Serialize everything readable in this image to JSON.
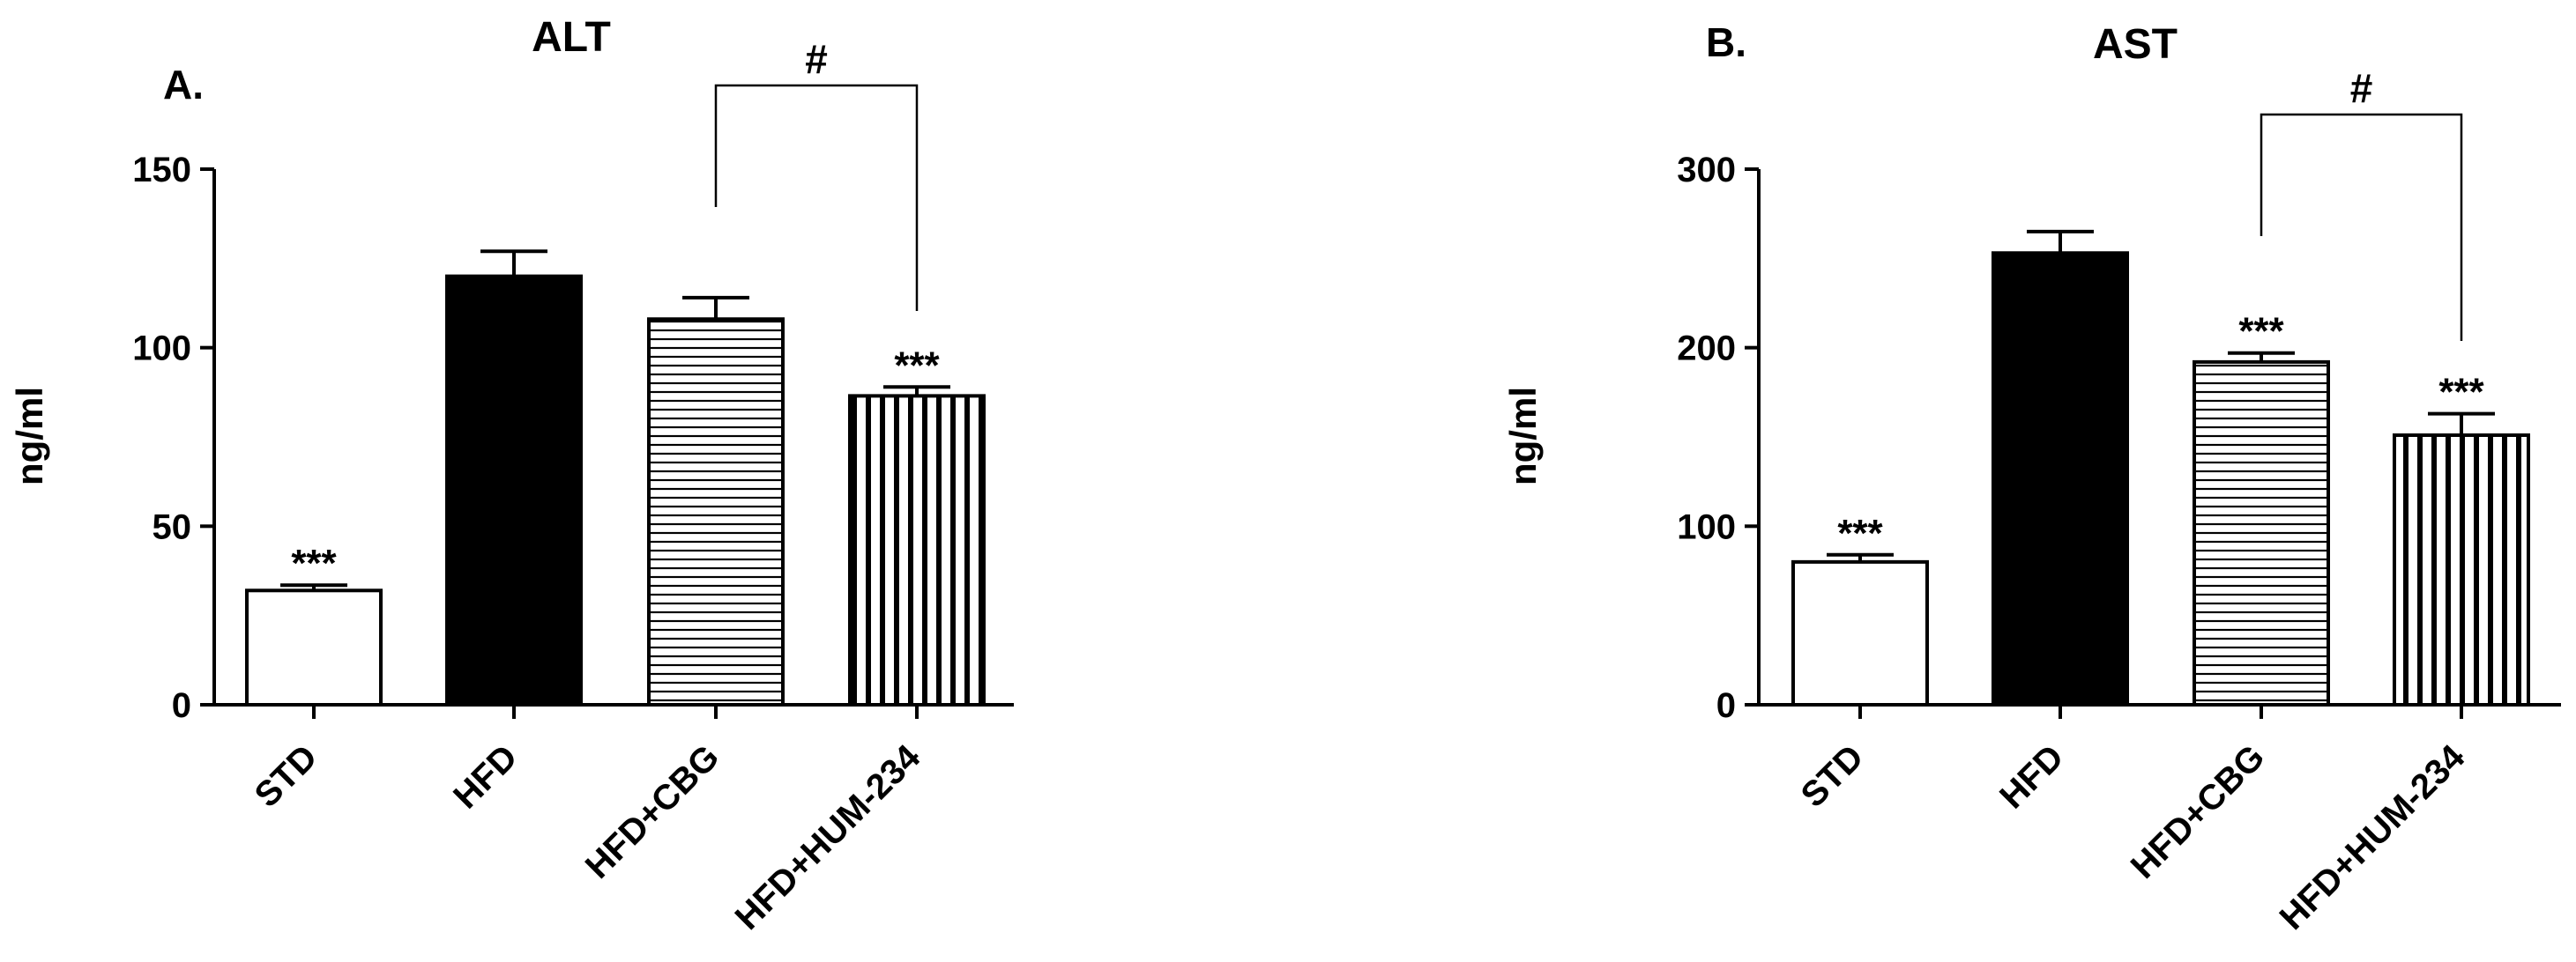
{
  "chart_data": [
    {
      "type": "bar",
      "panel_label": "A.",
      "title": "ALT",
      "ylabel": "ng/ml",
      "xlabel": "",
      "categories": [
        "STD",
        "HFD",
        "HFD+CBG",
        "HFD+HUM-234"
      ],
      "values": [
        32,
        120,
        108,
        86.5
      ],
      "errors": [
        1.5,
        7,
        6,
        2.5
      ],
      "bar_patterns": [
        "none",
        "solid",
        "horizontal-lines",
        "vertical-lines"
      ],
      "ylim": [
        0,
        150
      ],
      "yticks": [
        "0",
        "50",
        "100",
        "150"
      ],
      "annotations": [
        "***",
        "",
        "",
        "***"
      ],
      "comparison": {
        "from": 2,
        "to": 3,
        "label": "#"
      },
      "grid": false,
      "legend": "none"
    },
    {
      "type": "bar",
      "panel_label": "B.",
      "title": "AST",
      "ylabel": "ng/ml",
      "xlabel": "",
      "categories": [
        "STD",
        "HFD",
        "HFD+CBG",
        "HFD+HUM-234"
      ],
      "values": [
        80,
        253,
        192,
        151
      ],
      "errors": [
        4,
        12,
        5,
        12
      ],
      "bar_patterns": [
        "none",
        "solid",
        "horizontal-lines",
        "vertical-lines"
      ],
      "ylim": [
        0,
        300
      ],
      "yticks": [
        "0",
        "100",
        "200",
        "300"
      ],
      "annotations": [
        "***",
        "",
        "***",
        "***"
      ],
      "comparison": {
        "from": 2,
        "to": 3,
        "label": "#"
      },
      "grid": false,
      "legend": "none"
    }
  ]
}
